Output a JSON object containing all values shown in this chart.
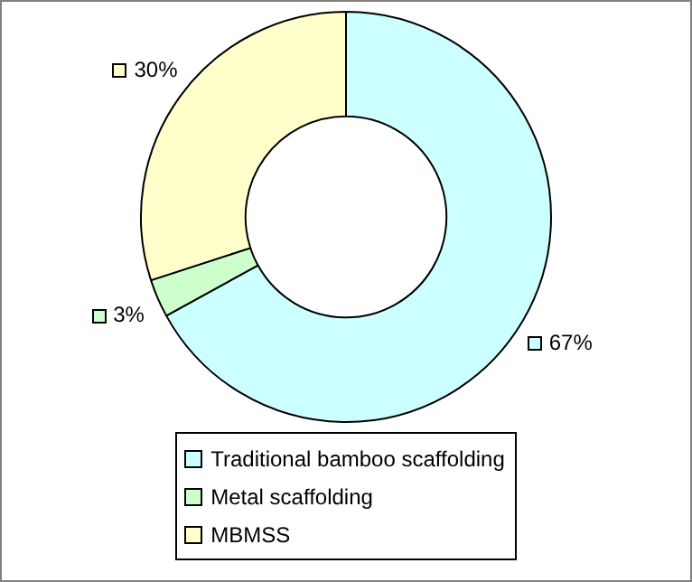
{
  "chart_data": {
    "type": "donut",
    "categories": [
      "Traditional bamboo scaffolding",
      "Metal scaffolding",
      "MBMSS"
    ],
    "values": [
      67,
      3,
      30
    ],
    "colors": [
      "#ccffff",
      "#ccffcc",
      "#ffffcc"
    ],
    "value_labels": [
      "67%",
      "3%",
      "30%"
    ],
    "legend": "bottom"
  }
}
